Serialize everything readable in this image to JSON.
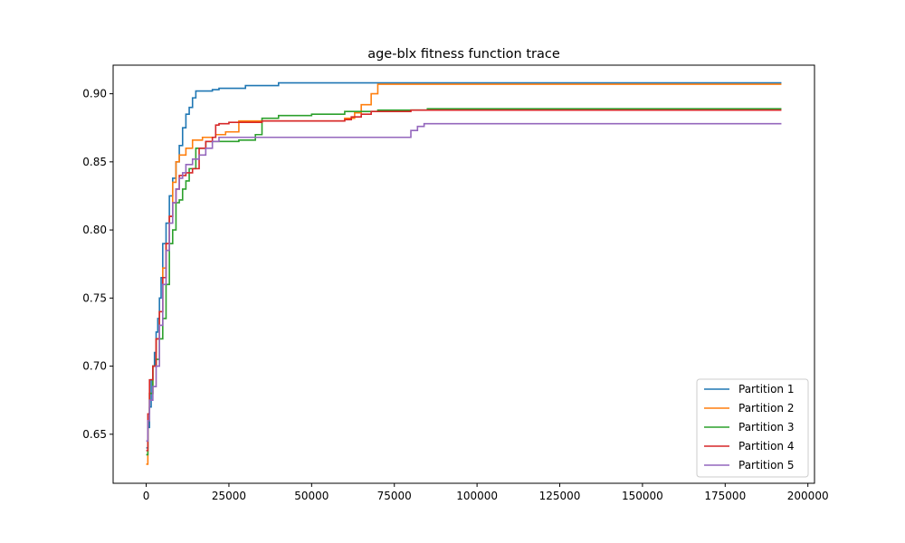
{
  "chart_data": {
    "type": "line",
    "title": "age-blx fitness function trace",
    "xlabel": "",
    "ylabel": "",
    "xlim": [
      -10000,
      202000
    ],
    "ylim": [
      0.614,
      0.921
    ],
    "xticks": [
      0,
      25000,
      50000,
      75000,
      100000,
      125000,
      150000,
      175000,
      200000
    ],
    "yticks": [
      0.65,
      0.7,
      0.75,
      0.8,
      0.85,
      0.9
    ],
    "ytick_labels": [
      "0.65",
      "0.70",
      "0.75",
      "0.80",
      "0.85",
      "0.90"
    ],
    "grid": false,
    "legend_position": "lower-right",
    "series": [
      {
        "name": "Partition 1",
        "color": "#1f77b4",
        "points": [
          [
            0,
            0.64
          ],
          [
            500,
            0.655
          ],
          [
            1000,
            0.67
          ],
          [
            1500,
            0.69
          ],
          [
            2000,
            0.7
          ],
          [
            2500,
            0.71
          ],
          [
            3000,
            0.725
          ],
          [
            3500,
            0.735
          ],
          [
            4000,
            0.75
          ],
          [
            4500,
            0.765
          ],
          [
            5000,
            0.79
          ],
          [
            6000,
            0.805
          ],
          [
            7000,
            0.825
          ],
          [
            8000,
            0.838
          ],
          [
            9000,
            0.85
          ],
          [
            10000,
            0.862
          ],
          [
            11000,
            0.875
          ],
          [
            12000,
            0.885
          ],
          [
            13000,
            0.89
          ],
          [
            14000,
            0.897
          ],
          [
            15000,
            0.902
          ],
          [
            20000,
            0.903
          ],
          [
            22000,
            0.904
          ],
          [
            30000,
            0.906
          ],
          [
            40000,
            0.908
          ],
          [
            192000,
            0.908
          ]
        ]
      },
      {
        "name": "Partition 2",
        "color": "#ff7f0e",
        "points": [
          [
            0,
            0.628
          ],
          [
            500,
            0.66
          ],
          [
            1000,
            0.68
          ],
          [
            2000,
            0.7
          ],
          [
            3000,
            0.72
          ],
          [
            4000,
            0.74
          ],
          [
            5000,
            0.772
          ],
          [
            6000,
            0.79
          ],
          [
            7000,
            0.81
          ],
          [
            8000,
            0.835
          ],
          [
            9000,
            0.85
          ],
          [
            10000,
            0.855
          ],
          [
            12000,
            0.86
          ],
          [
            14000,
            0.866
          ],
          [
            17000,
            0.868
          ],
          [
            20000,
            0.868
          ],
          [
            21000,
            0.87
          ],
          [
            24000,
            0.872
          ],
          [
            28000,
            0.88
          ],
          [
            35000,
            0.88
          ],
          [
            60000,
            0.882
          ],
          [
            63000,
            0.886
          ],
          [
            65000,
            0.892
          ],
          [
            68000,
            0.9
          ],
          [
            70000,
            0.907
          ],
          [
            192000,
            0.907
          ]
        ]
      },
      {
        "name": "Partition 3",
        "color": "#2ca02c",
        "points": [
          [
            0,
            0.635
          ],
          [
            500,
            0.66
          ],
          [
            1000,
            0.68
          ],
          [
            2000,
            0.7
          ],
          [
            3000,
            0.705
          ],
          [
            4000,
            0.72
          ],
          [
            5000,
            0.735
          ],
          [
            6000,
            0.76
          ],
          [
            7000,
            0.79
          ],
          [
            8000,
            0.8
          ],
          [
            9000,
            0.82
          ],
          [
            10000,
            0.822
          ],
          [
            11000,
            0.83
          ],
          [
            12000,
            0.836
          ],
          [
            13000,
            0.845
          ],
          [
            15000,
            0.86
          ],
          [
            18000,
            0.865
          ],
          [
            28000,
            0.866
          ],
          [
            33000,
            0.87
          ],
          [
            35000,
            0.882
          ],
          [
            40000,
            0.884
          ],
          [
            50000,
            0.885
          ],
          [
            60000,
            0.887
          ],
          [
            70000,
            0.888
          ],
          [
            80000,
            0.888
          ],
          [
            85000,
            0.889
          ],
          [
            192000,
            0.889
          ]
        ]
      },
      {
        "name": "Partition 4",
        "color": "#d62728",
        "points": [
          [
            0,
            0.638
          ],
          [
            500,
            0.665
          ],
          [
            1000,
            0.69
          ],
          [
            2000,
            0.7
          ],
          [
            3000,
            0.72
          ],
          [
            4000,
            0.74
          ],
          [
            5000,
            0.765
          ],
          [
            6000,
            0.79
          ],
          [
            7000,
            0.81
          ],
          [
            8000,
            0.82
          ],
          [
            9000,
            0.83
          ],
          [
            10000,
            0.84
          ],
          [
            12000,
            0.842
          ],
          [
            14000,
            0.845
          ],
          [
            16000,
            0.86
          ],
          [
            18000,
            0.865
          ],
          [
            20000,
            0.868
          ],
          [
            21000,
            0.877
          ],
          [
            22000,
            0.878
          ],
          [
            25000,
            0.879
          ],
          [
            35000,
            0.88
          ],
          [
            60000,
            0.881
          ],
          [
            62000,
            0.883
          ],
          [
            65000,
            0.885
          ],
          [
            68000,
            0.887
          ],
          [
            80000,
            0.888
          ],
          [
            192000,
            0.888
          ]
        ]
      },
      {
        "name": "Partition 5",
        "color": "#9467bd",
        "points": [
          [
            0,
            0.645
          ],
          [
            500,
            0.66
          ],
          [
            1000,
            0.675
          ],
          [
            2000,
            0.685
          ],
          [
            3000,
            0.7
          ],
          [
            4000,
            0.73
          ],
          [
            5000,
            0.76
          ],
          [
            6000,
            0.785
          ],
          [
            7000,
            0.805
          ],
          [
            8000,
            0.82
          ],
          [
            9000,
            0.83
          ],
          [
            10000,
            0.838
          ],
          [
            11000,
            0.842
          ],
          [
            12000,
            0.848
          ],
          [
            14000,
            0.852
          ],
          [
            16000,
            0.855
          ],
          [
            18000,
            0.86
          ],
          [
            20000,
            0.865
          ],
          [
            22000,
            0.868
          ],
          [
            79000,
            0.868
          ],
          [
            80000,
            0.873
          ],
          [
            82000,
            0.876
          ],
          [
            84000,
            0.878
          ],
          [
            192000,
            0.878
          ]
        ]
      }
    ]
  }
}
